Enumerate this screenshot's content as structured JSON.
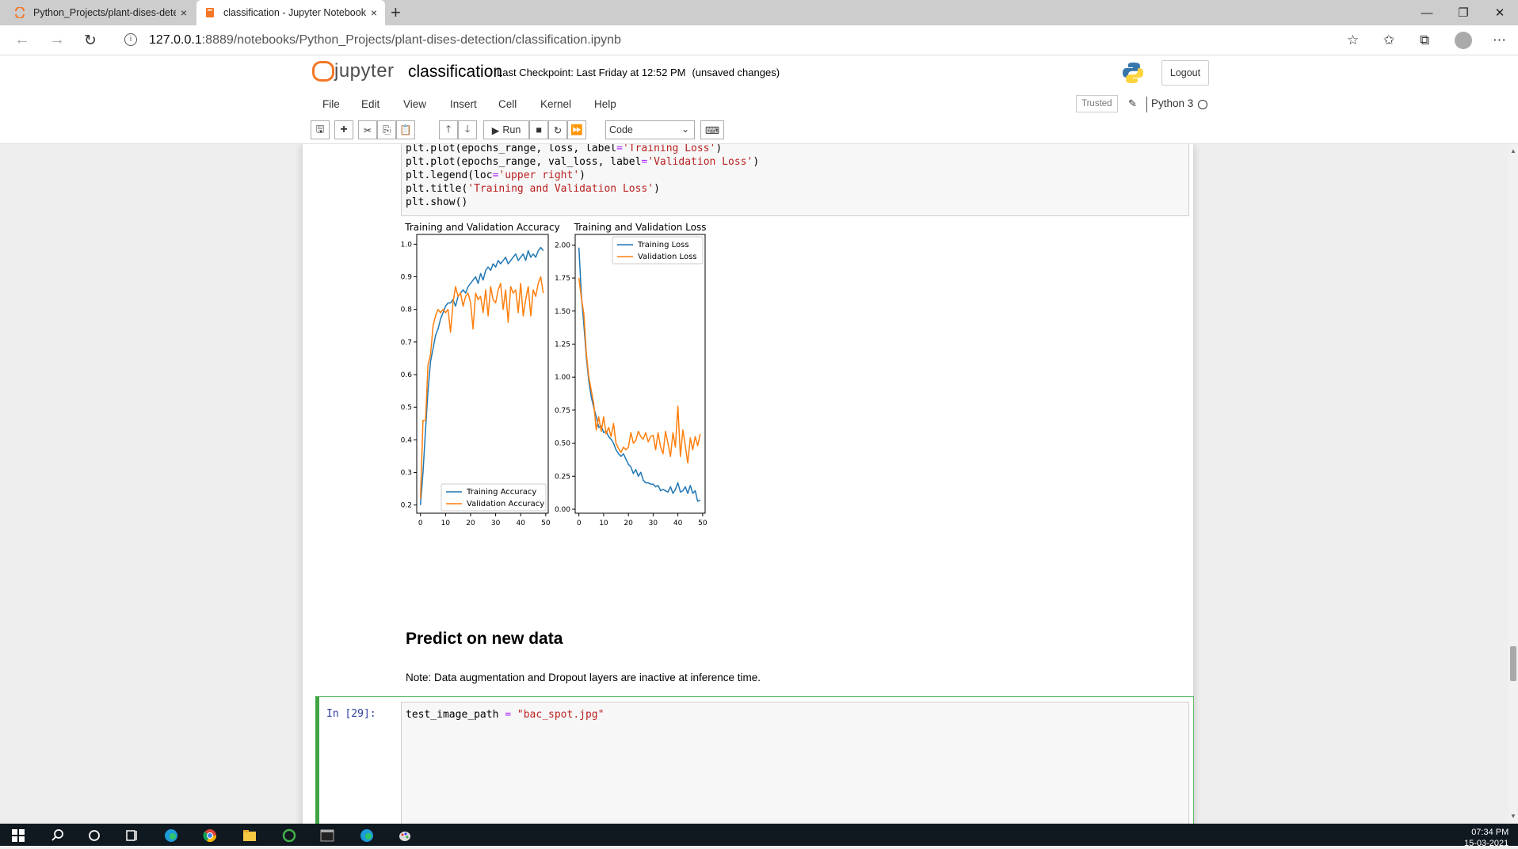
{
  "browser": {
    "tabs": [
      {
        "title": "Python_Projects/plant-dises-dete",
        "active": false
      },
      {
        "title": "classification - Jupyter Notebook",
        "active": true
      }
    ],
    "new_tab": "+",
    "close": "×",
    "url_host": "127.0.0.1",
    "url_rest": ":8889/notebooks/Python_Projects/plant-dises-detection/classification.ipynb",
    "window_controls": {
      "minimize": "—",
      "restore": "❐",
      "close": "✕"
    }
  },
  "jupyter": {
    "logo_text": "jupyter",
    "notebook_name": "classification",
    "checkpoint": "Last Checkpoint: Last Friday at 12:52 PM",
    "unsaved": "(unsaved changes)",
    "logout": "Logout",
    "menu": [
      "File",
      "Edit",
      "View",
      "Insert",
      "Cell",
      "Kernel",
      "Help"
    ],
    "trusted": "Trusted",
    "kernel": "Python 3",
    "toolbar": {
      "run_label": "Run",
      "cell_type": "Code"
    }
  },
  "code_cell_lines": [
    [
      "plt.plot(epochs_range, loss, label",
      "=",
      "'Training Loss'",
      ")"
    ],
    [
      "plt.plot(epochs_range, val_loss, label",
      "=",
      "'Validation Loss'",
      ")"
    ],
    [
      "plt.legend(loc",
      "=",
      "'upper right'",
      ")"
    ],
    [
      "plt.title(",
      "",
      "'Training and Validation Loss'",
      ")"
    ],
    [
      "plt.show()",
      "",
      "",
      ""
    ]
  ],
  "chart_data": [
    {
      "type": "line",
      "title": "Training and Validation Accuracy",
      "xlabel": "",
      "ylabel": "",
      "xlim": [
        -1.5,
        51
      ],
      "ylim": [
        0.175,
        1.03
      ],
      "xticks": [
        0,
        10,
        20,
        30,
        40,
        50
      ],
      "yticks": [
        0.2,
        0.3,
        0.4,
        0.5,
        0.6,
        0.7,
        0.8,
        0.9,
        1.0
      ],
      "ytick_labels": [
        "0.2",
        "0.3",
        "0.4",
        "0.5",
        "0.6",
        "0.7",
        "0.8",
        "0.9",
        "1.0"
      ],
      "legend_position": "lower-right",
      "series": [
        {
          "name": "Training Accuracy",
          "color": "#1f77b4",
          "values": [
            0.2,
            0.3,
            0.43,
            0.55,
            0.64,
            0.68,
            0.72,
            0.74,
            0.77,
            0.79,
            0.81,
            0.82,
            0.82,
            0.83,
            0.81,
            0.84,
            0.85,
            0.86,
            0.85,
            0.87,
            0.88,
            0.89,
            0.9,
            0.88,
            0.91,
            0.89,
            0.92,
            0.93,
            0.92,
            0.94,
            0.93,
            0.95,
            0.94,
            0.95,
            0.96,
            0.94,
            0.95,
            0.96,
            0.97,
            0.95,
            0.96,
            0.97,
            0.95,
            0.98,
            0.96,
            0.97,
            0.96,
            0.98,
            0.99,
            0.98
          ]
        },
        {
          "name": "Validation Accuracy",
          "color": "#ff7f0e",
          "values": [
            0.22,
            0.46,
            0.46,
            0.63,
            0.66,
            0.75,
            0.78,
            0.8,
            0.79,
            0.8,
            0.79,
            0.8,
            0.73,
            0.82,
            0.87,
            0.84,
            0.85,
            0.81,
            0.84,
            0.85,
            0.82,
            0.74,
            0.85,
            0.83,
            0.84,
            0.79,
            0.86,
            0.78,
            0.87,
            0.83,
            0.82,
            0.86,
            0.88,
            0.8,
            0.86,
            0.76,
            0.87,
            0.85,
            0.86,
            0.79,
            0.88,
            0.78,
            0.83,
            0.87,
            0.78,
            0.86,
            0.84,
            0.88,
            0.9,
            0.85
          ]
        }
      ]
    },
    {
      "type": "line",
      "title": "Training and Validation Loss",
      "xlabel": "",
      "ylabel": "",
      "xlim": [
        -1.5,
        51
      ],
      "ylim": [
        -0.03,
        2.08
      ],
      "xticks": [
        0,
        10,
        20,
        30,
        40,
        50
      ],
      "yticks": [
        0,
        0.25,
        0.5,
        0.75,
        1.0,
        1.25,
        1.5,
        1.75,
        2.0
      ],
      "ytick_labels": [
        "0.00",
        "0.25",
        "0.50",
        "0.75",
        "1.00",
        "1.25",
        "1.50",
        "1.75",
        "2.00"
      ],
      "legend_position": "upper-right",
      "series": [
        {
          "name": "Training Loss",
          "color": "#1f77b4",
          "values": [
            1.98,
            1.62,
            1.4,
            1.15,
            0.97,
            0.85,
            0.77,
            0.7,
            0.62,
            0.63,
            0.58,
            0.59,
            0.55,
            0.53,
            0.5,
            0.45,
            0.42,
            0.4,
            0.42,
            0.38,
            0.34,
            0.32,
            0.27,
            0.3,
            0.25,
            0.28,
            0.22,
            0.2,
            0.2,
            0.19,
            0.19,
            0.17,
            0.18,
            0.14,
            0.15,
            0.14,
            0.13,
            0.17,
            0.12,
            0.15,
            0.2,
            0.13,
            0.14,
            0.17,
            0.12,
            0.18,
            0.12,
            0.14,
            0.06,
            0.07
          ]
        },
        {
          "name": "Validation Loss",
          "color": "#ff7f0e",
          "values": [
            1.75,
            1.6,
            1.48,
            1.18,
            1.0,
            0.9,
            0.8,
            0.6,
            0.7,
            0.59,
            0.7,
            0.57,
            0.62,
            0.55,
            0.65,
            0.5,
            0.46,
            0.43,
            0.47,
            0.45,
            0.47,
            0.58,
            0.5,
            0.52,
            0.59,
            0.55,
            0.53,
            0.58,
            0.51,
            0.55,
            0.56,
            0.45,
            0.58,
            0.47,
            0.42,
            0.59,
            0.5,
            0.4,
            0.58,
            0.47,
            0.78,
            0.4,
            0.6,
            0.48,
            0.35,
            0.54,
            0.45,
            0.55,
            0.48,
            0.57
          ]
        }
      ]
    }
  ],
  "markdown": {
    "heading": "Predict on new data",
    "note": "Note: Data augmentation and Dropout layers are inactive at inference time."
  },
  "input_cell": {
    "prompt": "In [29]:",
    "code_var": "test_image_path ",
    "code_op": "=",
    "code_str": " \"bac_spot.jpg\""
  },
  "taskbar": {
    "time": "07:34 PM",
    "date": "15-03-2021"
  }
}
